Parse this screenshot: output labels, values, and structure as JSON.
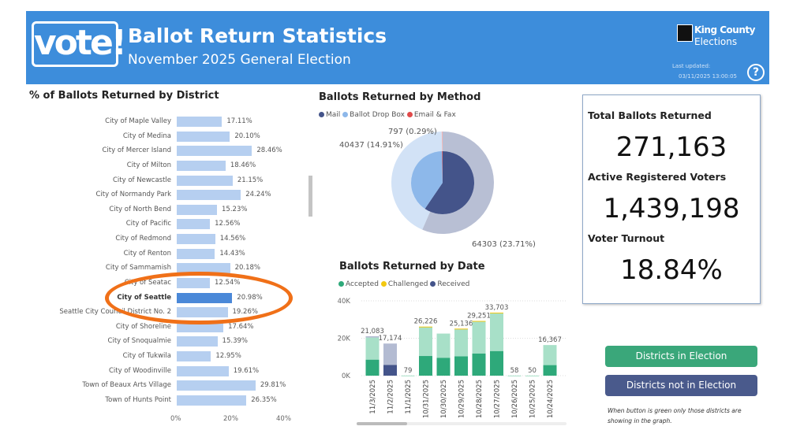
{
  "header": {
    "logo_text": "vote!",
    "title": "Ballot Return Statistics",
    "subtitle": "November 2025 General Election",
    "org_name": "King County",
    "org_sub": "Elections",
    "last_updated_label": "Last updated:",
    "last_updated_value": "03/11/2025 13:00:05",
    "help_icon": "question-circle-icon",
    "color": "#3d8ddb"
  },
  "district_chart": {
    "title": "% of Ballots Returned by District",
    "type": "bar",
    "xlim": [
      0,
      40
    ],
    "ticks": [
      "0%",
      "20%",
      "40%"
    ],
    "selected": "City of Seattle",
    "categories": [
      "City of Maple Valley",
      "City of Medina",
      "City of Mercer Island",
      "City of Milton",
      "City of Newcastle",
      "City of Normandy Park",
      "City of North Bend",
      "City of Pacific",
      "City of Redmond",
      "City of Renton",
      "City of Sammamish",
      "City of Seatac",
      "City of Seattle",
      "Seattle City Council District No. 2",
      "City of Shoreline",
      "City of Snoqualmie",
      "City of Tukwila",
      "City of Woodinville",
      "Town of Beaux Arts Village",
      "Town of Hunts Point"
    ],
    "values": [
      17.11,
      20.1,
      28.46,
      18.46,
      21.15,
      24.24,
      15.23,
      12.56,
      14.56,
      14.43,
      20.18,
      12.54,
      20.98,
      19.26,
      17.64,
      15.39,
      12.95,
      19.61,
      29.81,
      26.35
    ],
    "labels": [
      "17.11%",
      "20.10%",
      "28.46%",
      "18.46%",
      "21.15%",
      "24.24%",
      "15.23%",
      "12.56%",
      "14.56%",
      "14.43%",
      "20.18%",
      "12.54%",
      "20.98%",
      "19.26%",
      "17.64%",
      "15.39%",
      "12.95%",
      "19.61%",
      "29.81%",
      "26.35%"
    ]
  },
  "method_chart": {
    "title": "Ballots Returned by Method",
    "type": "pie",
    "legend": [
      {
        "name": "Mail",
        "color": "#44548a"
      },
      {
        "name": "Ballot Drop Box",
        "color": "#8db8ea"
      },
      {
        "name": "Email & Fax",
        "color": "#e04a4a"
      }
    ],
    "outer_shares": [
      56.5,
      43.2,
      0.29
    ],
    "inner_shares": [
      59.5,
      40.2,
      0.3
    ],
    "labels": [
      "797 (0.29%)",
      "40437 (14.91%)",
      "64303 (23.71%)"
    ]
  },
  "chart_data": {
    "type": "bar",
    "title": "Ballots Returned by Date",
    "legend": [
      {
        "name": "Accepted",
        "color": "#2ea97a"
      },
      {
        "name": "Challenged",
        "color": "#f2c811"
      },
      {
        "name": "Received",
        "color": "#44548a"
      }
    ],
    "ylim": [
      0,
      40000
    ],
    "y_ticks": [
      "0K",
      "20K",
      "40K"
    ],
    "categories": [
      "11/3/2025",
      "11/2/2025",
      "11/1/2025",
      "10/31/2025",
      "10/30/2025",
      "10/29/2025",
      "10/28/2025",
      "10/27/2025",
      "10/26/2025",
      "10/25/2025",
      "10/24/2025"
    ],
    "totals": [
      21083,
      17174,
      79,
      26226,
      22500,
      25136,
      29251,
      33703,
      58,
      50,
      16367
    ],
    "total_labels": [
      "21,083",
      "17,174",
      "79",
      "26,226",
      "",
      "25,136",
      "29,251",
      "33,703",
      "58",
      "50",
      "16,367"
    ],
    "accepted": [
      20383,
      0,
      79,
      25926,
      22500,
      24836,
      28951,
      33403,
      58,
      50,
      16367
    ],
    "challenged": [
      0,
      0,
      0,
      300,
      0,
      300,
      300,
      300,
      0,
      0,
      0
    ],
    "received": [
      700,
      17174,
      0,
      0,
      0,
      0,
      0,
      0,
      0,
      0,
      0
    ],
    "highlighted": [
      8500,
      5700,
      0,
      10500,
      9500,
      10300,
      11800,
      13100,
      0,
      0,
      5600
    ]
  },
  "kpi": {
    "total_label": "Total Ballots Returned",
    "total_value": "271,163",
    "voters_label": "Active Registered Voters",
    "voters_value": "1,439,198",
    "turnout_label": "Voter Turnout",
    "turnout_value": "18.84%"
  },
  "buttons": {
    "in_election": "Districts in Election",
    "in_election_color": "#3aa77a",
    "not_in_election": "Districts not in Election",
    "not_in_election_color": "#4a5a8c",
    "note": "When button is green only those districts are showing in the graph."
  }
}
